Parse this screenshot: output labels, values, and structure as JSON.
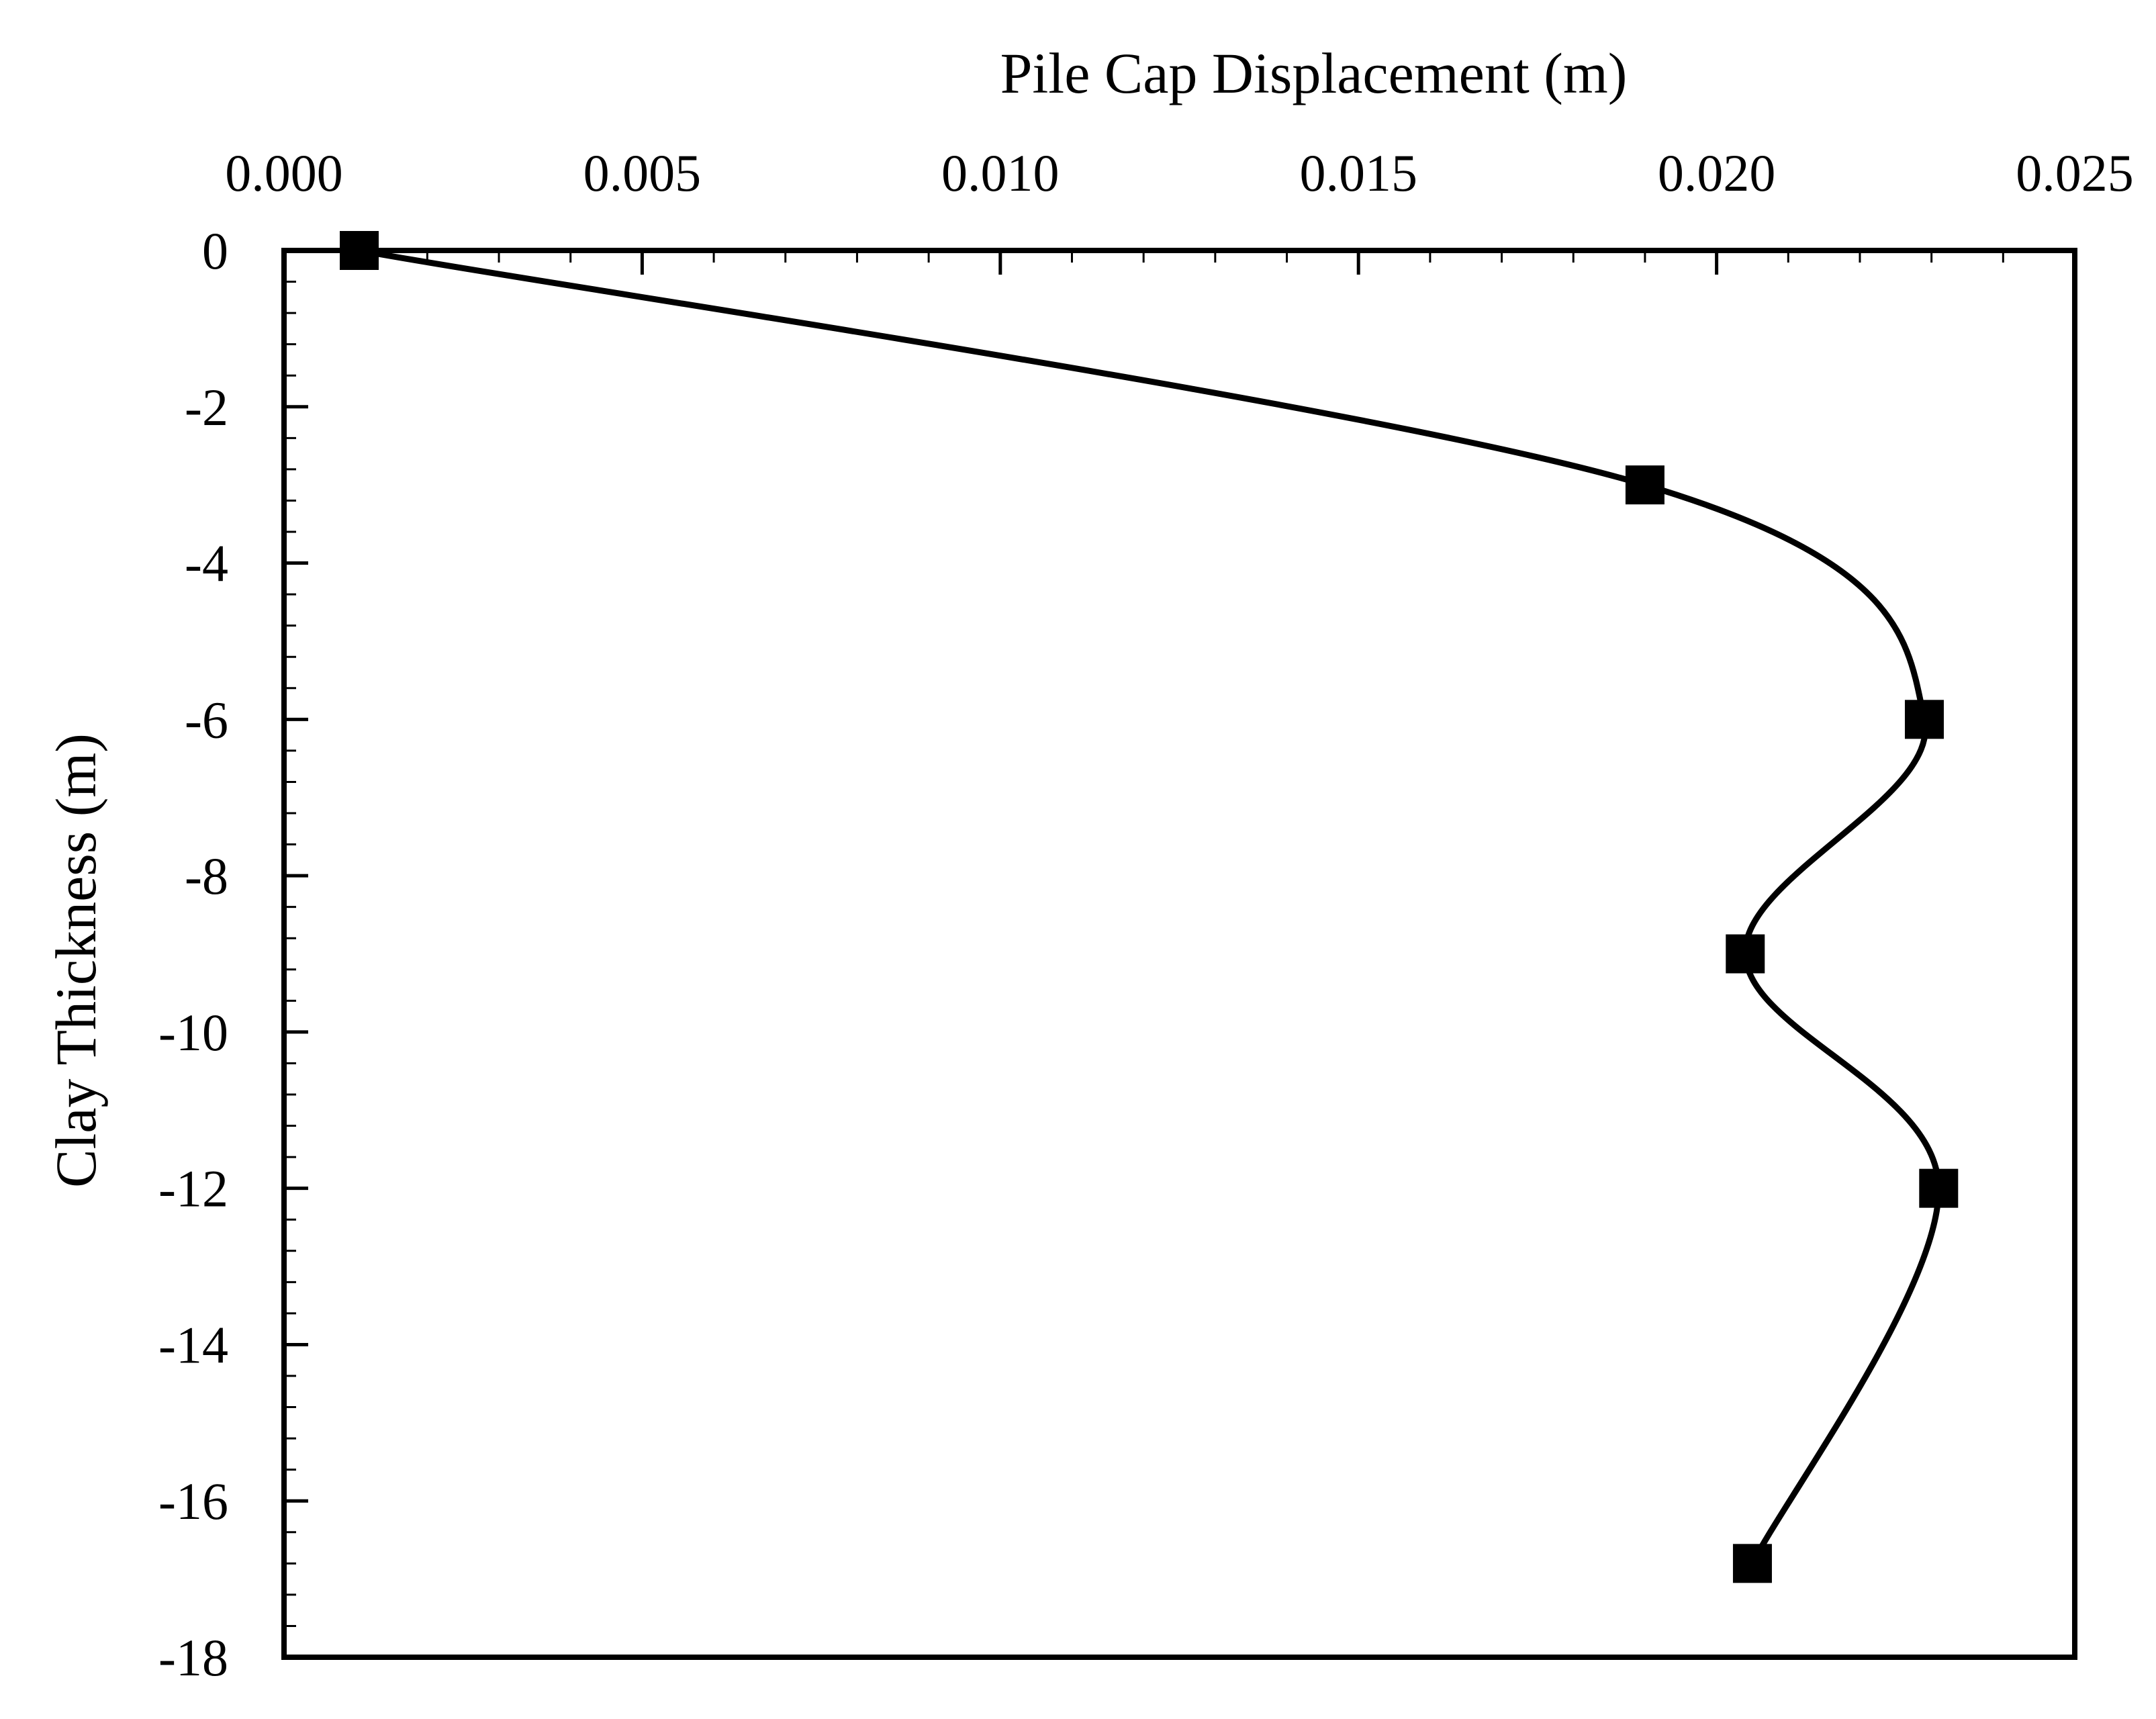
{
  "chart_data": {
    "type": "line",
    "title": "",
    "xlabel": "Pile Cap Displacement (m)",
    "ylabel": "Clay Thickness (m)",
    "x_axis_position": "top",
    "xlim": [
      0.0,
      0.025
    ],
    "ylim": [
      -18,
      0
    ],
    "x_ticks": [
      0.0,
      0.005,
      0.01,
      0.015,
      0.02,
      0.025
    ],
    "x_tick_labels": [
      "0.000",
      "0.005",
      "0.010",
      "0.015",
      "0.020",
      "0.025"
    ],
    "y_ticks": [
      0,
      -2,
      -4,
      -6,
      -8,
      -10,
      -12,
      -14,
      -16,
      -18
    ],
    "y_tick_labels": [
      "0",
      "-2",
      "-4",
      "-6",
      "-8",
      "-10",
      "-12",
      "-14",
      "-16",
      "-18"
    ],
    "grid": false,
    "legend": "none",
    "line_style": "smooth",
    "marker": "square",
    "color": "#000000",
    "series": [
      {
        "points": [
          {
            "x": 0.00105,
            "y": 0
          },
          {
            "x": 0.019,
            "y": -3
          },
          {
            "x": 0.0229,
            "y": -6
          },
          {
            "x": 0.0204,
            "y": -9
          },
          {
            "x": 0.0231,
            "y": -12
          },
          {
            "x": 0.0205,
            "y": -16.8
          }
        ]
      }
    ]
  }
}
